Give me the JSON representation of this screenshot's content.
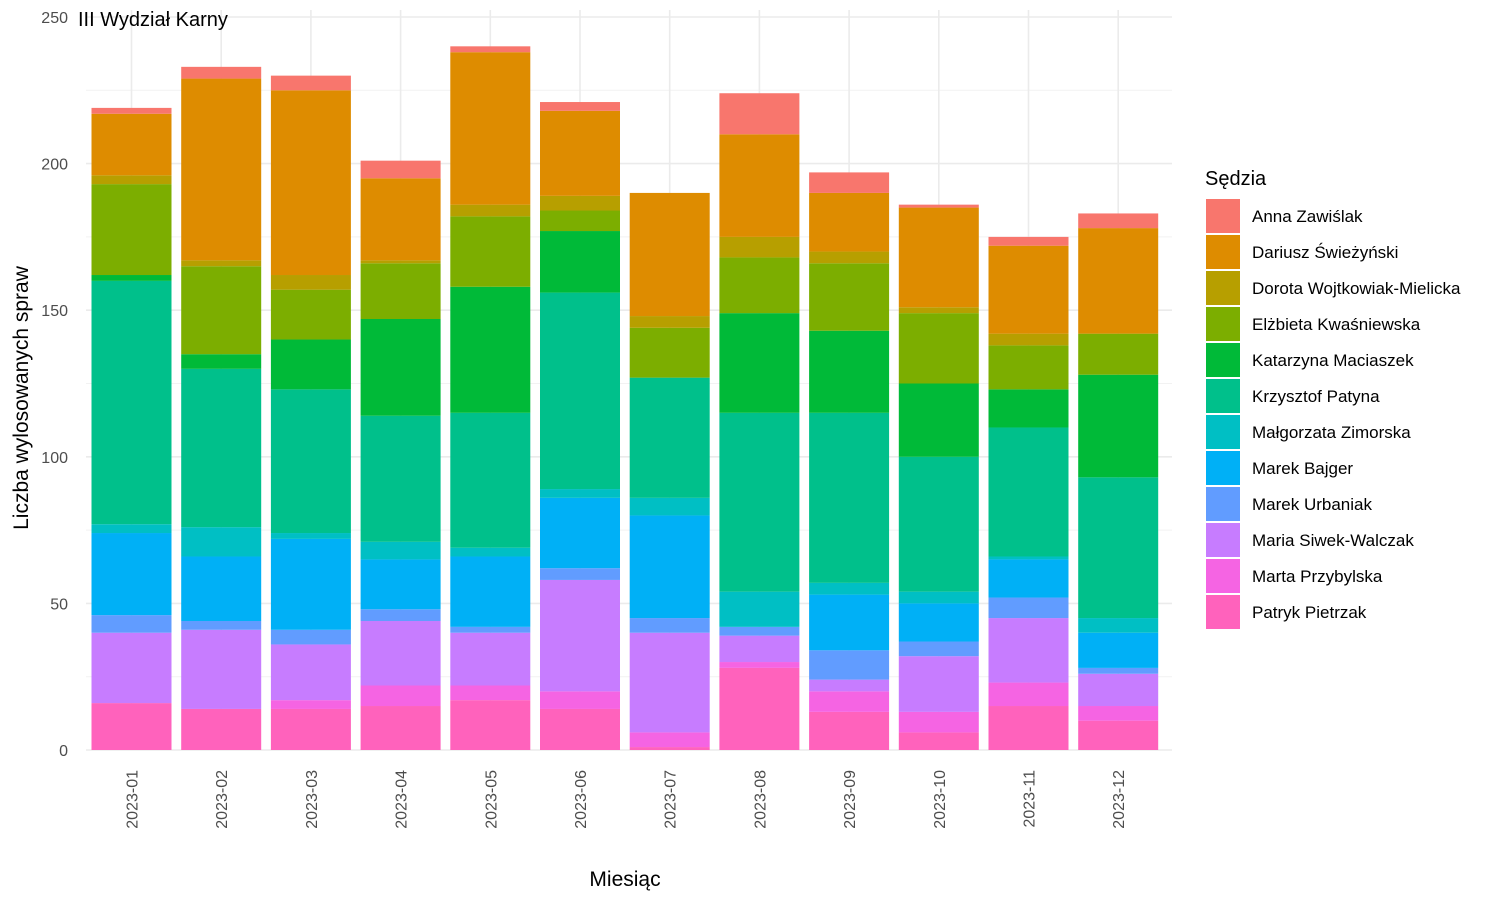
{
  "chart_data": {
    "type": "bar",
    "stacked": true,
    "title": "III Wydział Karny",
    "xlabel": "Miesiąc",
    "ylabel": "Liczba wylosowanych spraw",
    "ylim": [
      0,
      250
    ],
    "yticks": [
      0,
      50,
      100,
      150,
      200,
      250
    ],
    "grid": true,
    "legend_position": "right",
    "legend_title": "Sędzia",
    "categories": [
      "2023-01",
      "2023-02",
      "2023-03",
      "2023-04",
      "2023-05",
      "2023-06",
      "2023-07",
      "2023-08",
      "2023-09",
      "2023-10",
      "2023-11",
      "2023-12"
    ],
    "series": [
      {
        "name": "Patryk Pietrzak",
        "color": "#FF62BC",
        "values": [
          16,
          14,
          14,
          15,
          17,
          14,
          1,
          28,
          13,
          6,
          15,
          10
        ]
      },
      {
        "name": "Marta Przybylska",
        "color": "#F564E3",
        "values": [
          0,
          0,
          3,
          7,
          5,
          6,
          5,
          2,
          7,
          7,
          8,
          5
        ]
      },
      {
        "name": "Maria Siwek-Walczak",
        "color": "#C77CFF",
        "values": [
          24,
          27,
          19,
          22,
          18,
          38,
          34,
          9,
          4,
          19,
          22,
          11
        ]
      },
      {
        "name": "Marek Urbaniak",
        "color": "#619CFF",
        "values": [
          6,
          3,
          5,
          4,
          2,
          4,
          5,
          3,
          10,
          5,
          7,
          2
        ]
      },
      {
        "name": "Marek Bajger",
        "color": "#00B0F6",
        "values": [
          28,
          22,
          31,
          17,
          24,
          24,
          35,
          0,
          19,
          13,
          13,
          12
        ]
      },
      {
        "name": "Małgorzata Zimorska",
        "color": "#00BFC4",
        "values": [
          3,
          10,
          2,
          6,
          3,
          3,
          6,
          12,
          4,
          4,
          1,
          5
        ]
      },
      {
        "name": "Krzysztof Patyna",
        "color": "#00C08B",
        "values": [
          83,
          54,
          49,
          43,
          46,
          67,
          41,
          61,
          58,
          46,
          44,
          48
        ]
      },
      {
        "name": "Katarzyna Maciaszek",
        "color": "#00BA38",
        "values": [
          2,
          5,
          17,
          33,
          43,
          21,
          0,
          34,
          28,
          25,
          13,
          35
        ]
      },
      {
        "name": "Elżbieta Kwaśniewska",
        "color": "#7CAE00",
        "values": [
          31,
          30,
          17,
          19,
          24,
          7,
          17,
          19,
          23,
          24,
          15,
          14
        ]
      },
      {
        "name": "Dorota Wojtkowiak-Mielicka",
        "color": "#B79F00",
        "values": [
          3,
          2,
          5,
          1,
          4,
          5,
          4,
          7,
          4,
          2,
          4,
          0
        ]
      },
      {
        "name": "Dariusz Świeżyński",
        "color": "#DE8C00",
        "values": [
          21,
          62,
          63,
          28,
          52,
          29,
          42,
          35,
          20,
          34,
          30,
          36
        ]
      },
      {
        "name": "Anna Zawiślak",
        "color": "#F8766D",
        "values": [
          2,
          4,
          5,
          6,
          2,
          3,
          0,
          14,
          7,
          1,
          3,
          5
        ]
      }
    ]
  }
}
